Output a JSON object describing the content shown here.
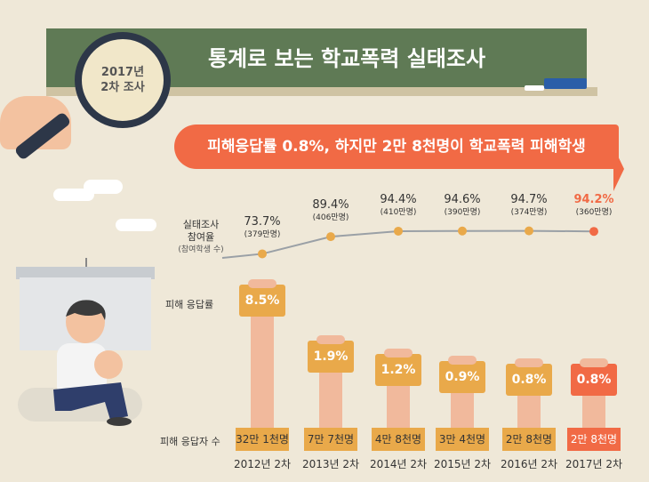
{
  "header": {
    "badge_line1": "2017년",
    "badge_line2": "2차 조사",
    "title": "통계로 보는 학교폭력 실태조사",
    "banner": "피해응답률 0.8%, 하지만 2만 8천명이 학교폭력 피해학생"
  },
  "labels": {
    "participation_line1": "실태조사",
    "participation_line2": "참여율",
    "participation_sub": "(참여학생 수)",
    "victim_rate": "피해 응답률",
    "victim_count": "피해 응답자 수"
  },
  "chart_data": {
    "type": "line+bar",
    "categories": [
      "2012년 2차",
      "2013년 2차",
      "2014년 2차",
      "2015년 2차",
      "2016년 2차",
      "2017년 2차"
    ],
    "participation_rate": [
      73.7,
      89.4,
      94.4,
      94.6,
      94.7,
      94.2
    ],
    "participation_rate_labels": [
      "73.7%",
      "89.4%",
      "94.4%",
      "94.6%",
      "94.7%",
      "94.2%"
    ],
    "participants_labels": [
      "(379만명)",
      "(406만명)",
      "(410만명)",
      "(390만명)",
      "(374만명)",
      "(360만명)"
    ],
    "victim_rate": [
      8.5,
      1.9,
      1.2,
      0.9,
      0.8,
      0.8
    ],
    "victim_rate_labels": [
      "8.5%",
      "1.9%",
      "1.2%",
      "0.9%",
      "0.8%",
      "0.8%"
    ],
    "victim_count_labels": [
      "32만 1천명",
      "7만 7천명",
      "4만 8천명",
      "3만 4천명",
      "2만 8천명",
      "2만 8천명"
    ]
  },
  "colors": {
    "board": "#5f7a55",
    "banner": "#f16a45",
    "card": "#e9a94a",
    "highlight": "#f16a45",
    "line": "#9aa0a6",
    "point": "#e9a94a",
    "arm": "#f1b99c"
  }
}
